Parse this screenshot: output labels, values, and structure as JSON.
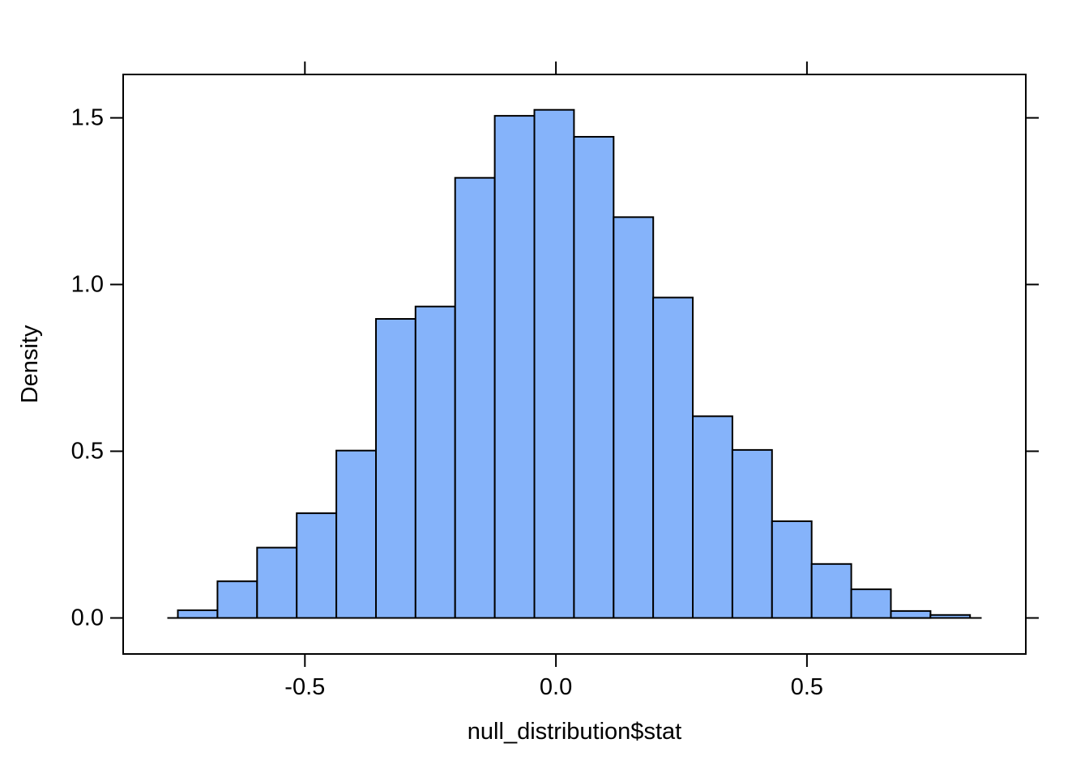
{
  "page": {
    "background": "#ffffff"
  },
  "chart_data": {
    "type": "bar",
    "subtype": "histogram",
    "title": "",
    "xlabel": "null_distribution$stat",
    "ylabel": "Density",
    "bin_start": -0.753,
    "bin_width": 0.0789,
    "bin_edges": [
      -0.753,
      -0.674,
      -0.595,
      -0.516,
      -0.437,
      -0.358,
      -0.279,
      -0.2,
      -0.121,
      -0.043,
      0.036,
      0.115,
      0.194,
      0.273,
      0.352,
      0.431,
      0.51,
      0.589,
      0.668,
      0.746,
      0.825
    ],
    "densities": [
      0.023,
      0.11,
      0.211,
      0.314,
      0.502,
      0.897,
      0.934,
      1.32,
      1.506,
      1.524,
      1.443,
      1.202,
      0.961,
      0.605,
      0.504,
      0.29,
      0.162,
      0.086,
      0.021,
      0.009
    ],
    "x_ticks": [
      -0.5,
      0.0,
      0.5
    ],
    "x_tick_labels": [
      "-0.5",
      "0.0",
      "0.5"
    ],
    "y_ticks": [
      0.0,
      0.5,
      1.0,
      1.5
    ],
    "y_tick_labels": [
      "0.0",
      "0.5",
      "1.0",
      "1.5"
    ],
    "xlim": [
      -0.862,
      0.936
    ],
    "ylim": [
      -0.108,
      1.63
    ],
    "baseline_span": [
      -0.774,
      0.848
    ],
    "grid": false,
    "legend_position": "none",
    "bar_fill": "#85B3FA",
    "bar_stroke": "#000000",
    "axis_color": "#000000",
    "text_color": "#000000"
  }
}
